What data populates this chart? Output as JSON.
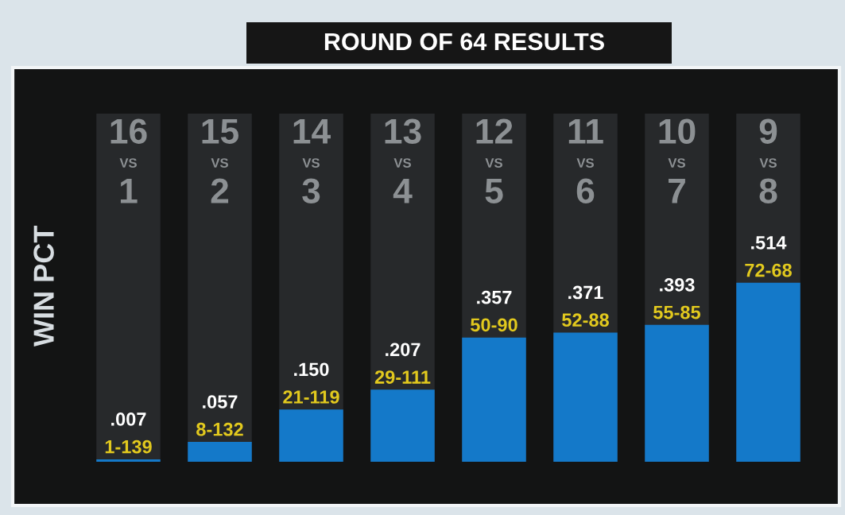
{
  "chart_data": {
    "type": "bar",
    "title": "ROUND OF 64 RESULTS",
    "ylabel": "WIN PCT",
    "categories": [
      "16\nVS\n1",
      "15\nVS\n2",
      "14\nVS\n3",
      "13\nVS\n4",
      "12\nVS\n5",
      "11\nVS\n6",
      "10\nVS\n7",
      "9\nVS\n8"
    ],
    "values": [
      0.007,
      0.057,
      0.15,
      0.207,
      0.357,
      0.371,
      0.393,
      0.514
    ],
    "color": "#1479c9",
    "value_labels": [
      ".007",
      ".057",
      ".150",
      ".207",
      ".357",
      ".371",
      ".393",
      ".514"
    ],
    "annotations": [
      {
        "text": "1-139",
        "x": "16\nVS\n1",
        "y": 0.007
      },
      {
        "text": "8-132",
        "x": "15\nVS\n2",
        "y": 0.057
      },
      {
        "text": "21-119",
        "x": "14\nVS\n3",
        "y": 0.15
      },
      {
        "text": "29-111",
        "x": "13\nVS\n4",
        "y": 0.207
      },
      {
        "text": "50-90",
        "x": "12\nVS\n5",
        "y": 0.357
      },
      {
        "text": "52-88",
        "x": "11\nVS\n6",
        "y": 0.371
      },
      {
        "text": "55-85",
        "x": "10\nVS\n7",
        "y": 0.393
      },
      {
        "text": "72-68",
        "x": "9\nVS\n8",
        "y": 0.514
      }
    ],
    "ylim": [
      0,
      1
    ],
    "tick_labels": "x"
  }
}
